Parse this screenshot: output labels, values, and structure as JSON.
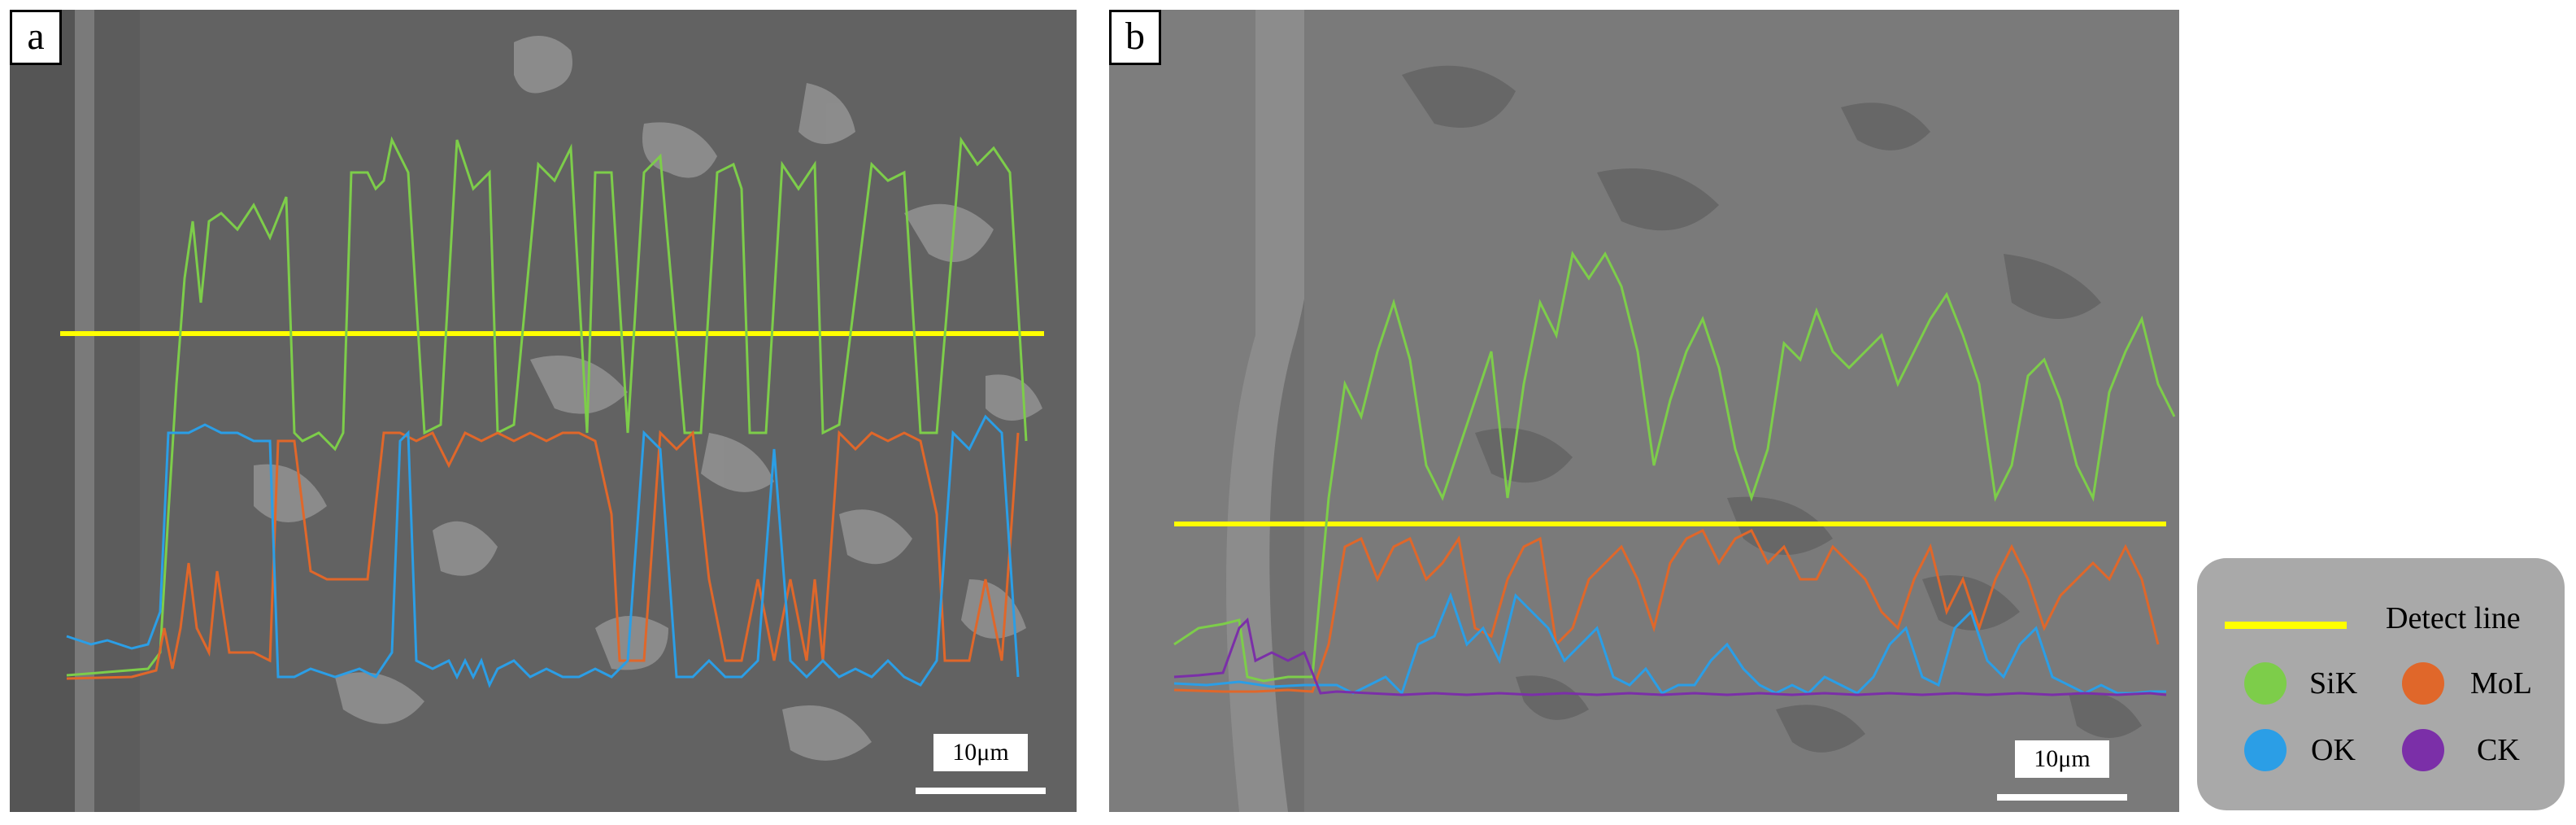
{
  "panels": [
    {
      "label": "a",
      "scale_bar": "10μm"
    },
    {
      "label": "b",
      "scale_bar": "10μm"
    }
  ],
  "legend": {
    "detect_line": "Detect line",
    "items": [
      {
        "name": "SiK",
        "color": "#7dcd4a"
      },
      {
        "name": "MoL",
        "color": "#e0672a"
      },
      {
        "name": "OK",
        "color": "#2b9ee6"
      },
      {
        "name": "CK",
        "color": "#7b2fa8"
      }
    ],
    "detect_color": "#ffff00"
  }
}
